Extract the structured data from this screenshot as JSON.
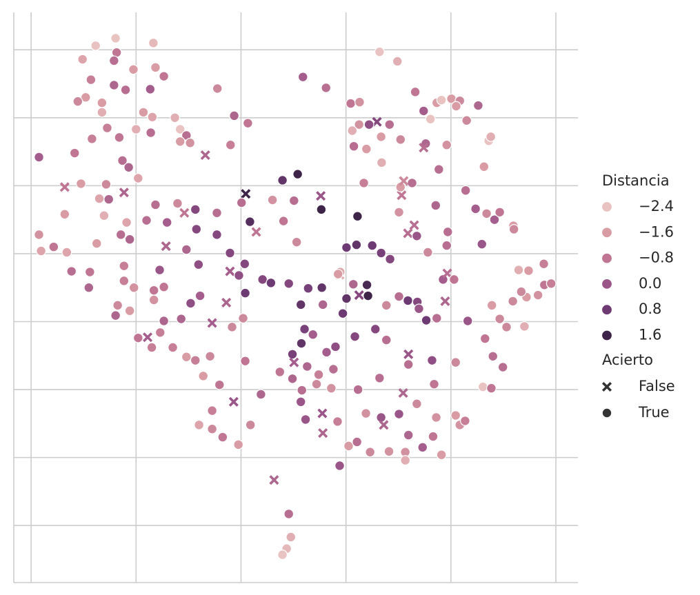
{
  "chart_data": {
    "type": "scatter",
    "xlim": [
      -43.3,
      64.2
    ],
    "ylim": [
      -48.4,
      35.5
    ],
    "xticks": [
      -40,
      -20,
      0,
      20,
      40,
      60
    ],
    "yticks": [
      -40,
      -30,
      -20,
      -10,
      0,
      10,
      20,
      30
    ],
    "grid": true,
    "legend": {
      "position": "right",
      "hue_title": "Distancia",
      "style_title": "Acierto"
    },
    "hue_ticks": [
      {
        "value": -2.4,
        "label": "−2.4"
      },
      {
        "value": -1.6,
        "label": "−1.6"
      },
      {
        "value": -0.8,
        "label": "−0.8"
      },
      {
        "value": 0,
        "label": "0.0"
      },
      0.8,
      1.6
    ],
    "hue_colors": [
      "#e9c3c1",
      "#d99ba4",
      "#c07693",
      "#9a5589",
      "#6d3a73",
      "#3d2448"
    ],
    "styles": [
      {
        "value": false,
        "label": "False",
        "marker": "x"
      },
      {
        "value": true,
        "label": "True",
        "marker": "o"
      }
    ],
    "x": [
      -23.9,
      -27.7,
      -16.7,
      -23.7,
      -30.2,
      -24.2,
      -20.5,
      -16.3,
      -14.7,
      -28.6,
      -24.2,
      -22.0,
      -17.3,
      -29.6,
      -31.1,
      -26.5,
      -26.5,
      -18.6,
      -16.9,
      -12.6,
      -25.5,
      -20.0,
      -11.6,
      -28.4,
      -23.2,
      -17.2,
      -10.4,
      -11.6,
      -9.7,
      -38.5,
      -31.7,
      -22.6,
      -21.4,
      -19.6,
      -30.5,
      -25.7,
      -27.0,
      -25.2,
      -33.6,
      -22.3,
      -33.6,
      -26.1,
      -21.8,
      -38.5,
      -38.1,
      -35.7,
      -33.2,
      -27.5,
      -22.9,
      -21.2,
      -32.3,
      -28.8,
      -29.0,
      -22.3,
      -22.3,
      -20.4,
      -23.5,
      -21.2,
      -23.9,
      -16.6,
      -14.7,
      -16.6,
      -14.7,
      -19.6,
      -17.8,
      -15.4,
      -17.0,
      -13.0,
      -10.4,
      -8.7,
      -5.9,
      -7.2,
      -4.1,
      -5.5,
      -8.0,
      -5.5,
      -3.5,
      -0.5,
      -1.4,
      -5.5,
      -1.7,
      0.4,
      0.8,
      3.8,
      1.8,
      6.3,
      9.1,
      9.5,
      8.7,
      7.9,
      -16.3,
      -18.0,
      -14.1,
      -12.1,
      -14.3,
      -10.8,
      -8.7,
      -8.5,
      -10.4,
      -8.1,
      -15.5,
      -9.6,
      -7.8,
      -11.4,
      -4.6,
      -4.6,
      -2.1,
      -2.1,
      0.7,
      -0.4,
      0.8,
      -2.8,
      1.7,
      0.9,
      0.1,
      -1.3,
      1.3,
      -2.0,
      -4.5,
      -6.8,
      2.9,
      7.9,
      10.8,
      6.0,
      10.1,
      8.1,
      10.6,
      15.3,
      15.2,
      22.2,
      23.4,
      11.8,
      16.2,
      4.1,
      5.7,
      9.1,
      12.8,
      15.4,
      11.4,
      15.6,
      19.4,
      20.1,
      22.5,
      24.0,
      24.2,
      18.9,
      18.8,
      12.1,
      13.7,
      11.5,
      9.8,
      10.1,
      12.6,
      14.8,
      17.6,
      18.0,
      16.3,
      7.4,
      9.8,
      11.6,
      14.4,
      17.2,
      11.4,
      15.5,
      12.3,
      15.6,
      18.4,
      20.5,
      18.8,
      22.3,
      21.7,
      25.6,
      27.7,
      26.4,
      20.1,
      22.0,
      25.0,
      26.7,
      28.4,
      27.7,
      30.1,
      31.8,
      33.6,
      33.9,
      35.3,
      37.3,
      43.2,
      38.9,
      38.5,
      39.3,
      40.6,
      31.9,
      31.9,
      36.4,
      40.9,
      36.8,
      30.9,
      33.5,
      30.1,
      23.8,
      26.7,
      27.2,
      37.2,
      40.9,
      41.7,
      42.7,
      36.6,
      31.9,
      34.6,
      31.3,
      31.3,
      38.2,
      22.1,
      24.6,
      28.2,
      46.1,
      47.7,
      46.5,
      48.0,
      49.9,
      47.8,
      49.3,
      50.6,
      54.0,
      51.8,
      54.4,
      56.6,
      53.4,
      57.8,
      59.1,
      57.7,
      52.9,
      54.8,
      45.9,
      51.9,
      52.0,
      48.3,
      49.3,
      44.7,
      46.8,
      42.8,
      37.1,
      39.4,
      39.2,
      35.6,
      33.0,
      31.8,
      33.5,
      30.1,
      30.6,
      32.6,
      30.4,
      31.0,
      37.7,
      46.3,
      47.2,
      47.6,
      43.0,
      45.2,
      39.2,
      35.2,
      34.8,
      33.2,
      34.8,
      37.3,
      38.2,
      40.1,
      41.7,
      41.0,
      36.1,
      26.4,
      29.8,
      20.9,
      22.6,
      25.9,
      24.4,
      28.3,
      22.5,
      21.2,
      26.7,
      21.5,
      23.9,
      26.8,
      30.4,
      21.4,
      18.5
    ],
    "y": [
      31.7,
      30.6,
      31.0,
      29.6,
      28.6,
      28.4,
      27.1,
      27.4,
      26.1,
      25.6,
      24.8,
      24.1,
      24.2,
      23.0,
      22.4,
      22.2,
      20.8,
      20.8,
      20.1,
      20.0,
      18.5,
      18.3,
      18.3,
      16.9,
      17.1,
      17.8,
      17.4,
      16.5,
      16.3,
      14.2,
      14.8,
      13.7,
      12.7,
      11.1,
      10.3,
      10.2,
      8.1,
      8.0,
      9.8,
      9.0,
      5.8,
      5.6,
      4.6,
      2.8,
      0.4,
      1.0,
      0.2,
      1.5,
      2.8,
      2.1,
      -2.6,
      -2.7,
      -5.0,
      -1.8,
      -4.0,
      -5.0,
      -7.6,
      -8.4,
      -9.1,
      -5.4,
      -4.9,
      -6.8,
      -9.9,
      -12.4,
      -12.3,
      -11.6,
      -13.8,
      -13.8,
      -15.2,
      -15.7,
      -15.1,
      -18.0,
      -19.3,
      -23.1,
      -25.2,
      -25.8,
      -27.0,
      -28.1,
      -21.8,
      -10.2,
      -10.8,
      -9.5,
      -15.8,
      -20.7,
      -25.2,
      -33.3,
      -38.3,
      -41.7,
      -43.4,
      -44.3,
      7.2,
      4.9,
      4.6,
      7.4,
      1.1,
      6.0,
      6.5,
      3.6,
      0.6,
      -1.6,
      -2.4,
      -7.3,
      -6.2,
      -9.6,
      6.0,
      2.8,
      0.1,
      -2.6,
      -1.5,
      -3.2,
      -5.8,
      -7.2,
      4.7,
      8.8,
      7.5,
      20.3,
      19.2,
      16.0,
      24.3,
      14.5,
      3.2,
      10.8,
      11.7,
      7.9,
      7.8,
      4.8,
      1.7,
      6.5,
      8.5,
      5.5,
      10.4,
      26.0,
      24.4,
      -3.8,
      -4.3,
      -4.4,
      -5.1,
      -5.0,
      -7.5,
      -7.5,
      -8.8,
      -6.6,
      -6.1,
      -4.6,
      -6.2,
      -2.7,
      -3.1,
      -11.1,
      -11.9,
      -13.2,
      -14.8,
      -16.0,
      -16.6,
      -17.8,
      -17.0,
      -13.7,
      -14.5,
      -17.4,
      -18.4,
      -20.1,
      -19.2,
      -19.8,
      -21.8,
      -23.5,
      -24.4,
      -26.4,
      -24.7,
      -28.3,
      -31.2,
      -20.0,
      -12.2,
      -11.1,
      -12.7,
      -18.3,
      0.9,
      1.3,
      1.2,
      0.1,
      -0.8,
      -7.6,
      -6.3,
      -6.9,
      -7.1,
      -8.1,
      -9.8,
      -9.5,
      -9.9,
      -7.0,
      -3.8,
      -2.9,
      -3.8,
      -14.8,
      -16.3,
      -15.7,
      -16.0,
      -19.2,
      -20.5,
      -22.1,
      -23.6,
      -23.5,
      -24.1,
      -25.2,
      -24.1,
      -23.8,
      -25.2,
      -24.6,
      -26.9,
      -26.7,
      -28.5,
      -29.2,
      -30.4,
      -29.6,
      -27.7,
      -29.2,
      -29.1,
      -19.6,
      -19.8,
      -12.5,
      -15.1,
      -16.7,
      -7.6,
      -9.6,
      -10.8,
      -10.7,
      -7.0,
      -6.4,
      -6.1,
      -5.6,
      -4.6,
      -4.4,
      -1.5,
      -2.4,
      -2.5,
      1.4,
      4.1,
      3.6,
      5.0,
      6.1,
      6.6,
      5.9,
      9.3,
      7.1,
      3.2,
      1.2,
      0.2,
      4.2,
      3.0,
      2.6,
      6.1,
      8.6,
      10.4,
      9.8,
      10.7,
      12.4,
      12.8,
      16.6,
      17.2,
      19.6,
      21.8,
      16.0,
      16.2,
      15.6,
      23.8,
      21.0,
      22.2,
      22.6,
      22.8,
      22.5,
      21.7,
      19.8,
      29.7,
      28.3,
      22.1,
      22.3,
      19.4,
      19.0,
      19.0,
      19.0,
      18.1,
      17.2,
      15.8,
      15.4,
      13.4,
      16.8,
      -4.5,
      -3.0
    ],
    "hue": [
      -2.4,
      -2.4,
      -2.2,
      -0.8,
      -1.8,
      -0.6,
      -1.6,
      -1.6,
      -0.8,
      -1.0,
      -0.4,
      -0.6,
      -0.2,
      -1.6,
      -1.2,
      -1.6,
      -2.0,
      -1.6,
      -1.8,
      -2.0,
      -1.0,
      -2.0,
      -2.4,
      -1.0,
      -0.8,
      -0.6,
      -0.6,
      -1.6,
      -1.4,
      -0.2,
      -0.8,
      -0.6,
      -0.4,
      -1.8,
      -1.6,
      -1.2,
      -1.8,
      -0.4,
      -0.8,
      -0.4,
      -1.6,
      -2.0,
      -1.8,
      -1.4,
      -1.8,
      -0.8,
      -1.8,
      -1.6,
      -0.6,
      -0.4,
      -0.6,
      -0.8,
      -0.4,
      -1.0,
      -1.0,
      -1.4,
      -1.2,
      -1.6,
      -0.4,
      -0.8,
      -0.8,
      -1.4,
      -0.4,
      -0.8,
      -0.2,
      -1.0,
      -1.0,
      -1.0,
      -1.6,
      -1.0,
      -1.2,
      -1.6,
      -0.8,
      -1.0,
      -1.8,
      -1.2,
      -0.8,
      -1.6,
      0.0,
      -0.2,
      -1.2,
      -1.2,
      -0.8,
      -0.4,
      -1.2,
      -0.4,
      -0.6,
      -2.0,
      -2.2,
      -2.4,
      -0.6,
      -0.6,
      -0.2,
      -1.2,
      -0.4,
      -0.8,
      0.4,
      0.4,
      -0.4,
      0.2,
      0.0,
      0.2,
      -0.2,
      -0.4,
      -0.6,
      0.4,
      0.4,
      -0.2,
      0.4,
      0.2,
      0.8,
      -0.4,
      1.2,
      1.6,
      -0.6,
      -0.4,
      -0.8,
      -1.0,
      -1.2,
      -0.4,
      -0.8,
      1.0,
      1.6,
      -1.4,
      -0.6,
      -0.8,
      -1.2,
      1.6,
      0.0,
      1.8,
      -1.0,
      -0.2,
      -0.6,
      0.4,
      0.8,
      0.4,
      0.6,
      1.0,
      1.0,
      -0.4,
      0.8,
      1.0,
      0.4,
      1.4,
      1.6,
      -1.8,
      -2.0,
      0.6,
      -0.2,
      1.0,
      0.6,
      -0.2,
      -0.4,
      -1.0,
      -0.6,
      0.2,
      -0.2,
      -0.8,
      -0.4,
      -0.6,
      -1.2,
      -1.4,
      0.0,
      0.0,
      0.0,
      -0.4,
      -1.0,
      -1.6,
      0.0,
      -0.6,
      0.4,
      0.4,
      -0.6,
      -0.6,
      0.8,
      1.0,
      0.8,
      0.6,
      0.4,
      -1.2,
      -0.6,
      0.8,
      0.4,
      0.0,
      0.8,
      -0.6,
      0.0,
      -0.4,
      -0.2,
      -0.6,
      -0.8,
      0.0,
      -0.6,
      0.2,
      -1.2,
      -0.8,
      -0.4,
      -1.2,
      0.0,
      -1.4,
      0.0,
      -0.4,
      -1.4,
      -1.6,
      -1.4,
      -1.0,
      -0.8,
      -0.4,
      -0.2,
      -1.4,
      -2.0,
      -1.6,
      -0.6,
      -1.2,
      -1.4,
      -2.4,
      -0.8,
      -0.8,
      -0.6,
      -0.6,
      -1.6,
      -1.2,
      -1.2,
      -2.0,
      -1.2,
      -1.6,
      -1.4,
      -1.2,
      -0.8,
      -1.0,
      -1.0,
      -2.0,
      -1.6,
      0.0,
      -1.6,
      -1.2,
      -0.2,
      -0.8,
      -0.2,
      -1.2,
      -0.6,
      -0.4,
      -0.6,
      -0.6,
      -1.2,
      -0.6,
      -0.6,
      0.0,
      -1.4,
      -0.8,
      -0.6,
      -1.6,
      -1.2,
      -0.6,
      -1.6,
      -2.4,
      -2.0,
      -1.2,
      -0.4,
      -1.4,
      -0.4,
      -0.6,
      -0.8,
      -0.2,
      -1.6,
      -2.4,
      -1.6,
      -1.2,
      -1.6,
      -2.4,
      -2.6,
      -2.0,
      -0.8,
      -1.4,
      0.4,
      0.2,
      -0.6,
      -1.4,
      -2.0,
      -1.6,
      -0.6,
      -1.6,
      -2.0,
      -1.2,
      -0.4,
      -1.6
    ],
    "acierto": [
      true,
      true,
      true,
      true,
      true,
      true,
      true,
      true,
      true,
      true,
      true,
      true,
      true,
      true,
      true,
      true,
      true,
      true,
      true,
      true,
      true,
      true,
      true,
      true,
      true,
      true,
      true,
      true,
      true,
      true,
      true,
      true,
      true,
      true,
      true,
      true,
      true,
      true,
      false,
      false,
      true,
      true,
      true,
      true,
      true,
      true,
      true,
      true,
      true,
      true,
      true,
      true,
      true,
      true,
      true,
      true,
      true,
      true,
      true,
      true,
      true,
      true,
      true,
      true,
      false,
      true,
      true,
      true,
      true,
      true,
      true,
      true,
      true,
      true,
      true,
      true,
      true,
      true,
      false,
      false,
      true,
      true,
      true,
      true,
      true,
      false,
      true,
      true,
      true,
      true,
      true,
      true,
      true,
      true,
      false,
      false,
      true,
      true,
      true,
      true,
      true,
      true,
      true,
      true,
      true,
      true,
      true,
      false,
      true,
      true,
      true,
      false,
      true,
      false,
      true,
      true,
      true,
      true,
      true,
      false,
      false,
      true,
      true,
      true,
      true,
      true,
      true,
      true,
      false,
      true,
      true,
      true,
      true,
      true,
      true,
      true,
      true,
      true,
      true,
      true,
      true,
      true,
      false,
      true,
      true,
      true,
      false,
      true,
      true,
      true,
      true,
      false,
      true,
      true,
      true,
      true,
      true,
      true,
      true,
      true,
      true,
      true,
      true,
      false,
      true,
      false,
      true,
      true,
      true,
      true,
      true,
      true,
      true,
      true,
      true,
      true,
      true,
      true,
      true,
      true,
      true,
      true,
      true,
      true,
      true,
      true,
      true,
      false,
      true,
      false,
      true,
      false,
      true,
      true,
      true,
      true,
      false,
      true,
      true,
      true,
      true,
      false,
      true,
      true,
      true,
      true,
      true,
      true,
      true,
      true,
      true,
      true,
      true,
      true,
      true,
      true,
      true,
      true,
      true,
      true,
      true,
      true,
      true,
      true,
      true,
      true,
      true,
      true,
      true,
      true,
      true,
      true,
      true,
      true,
      true,
      true,
      true,
      true,
      true,
      true,
      true,
      true,
      true,
      true,
      true,
      false,
      false,
      true,
      true,
      false,
      true,
      true,
      false,
      true,
      true,
      true,
      true,
      true,
      true,
      true,
      true,
      false,
      true,
      true,
      true,
      true,
      true,
      true,
      true,
      true,
      true,
      true,
      true,
      true,
      false,
      true,
      true,
      true,
      true,
      true,
      true,
      true,
      true,
      true,
      true,
      true
    ]
  }
}
